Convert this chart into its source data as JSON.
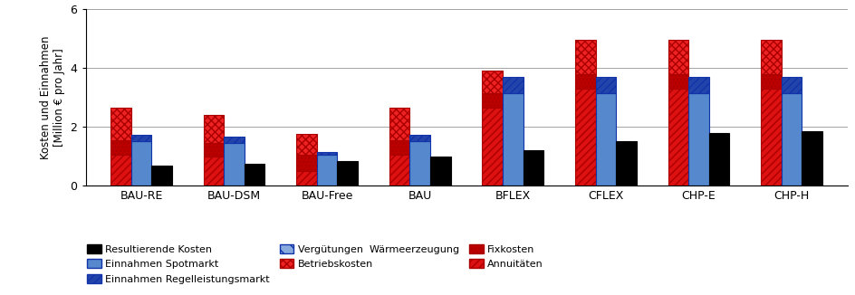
{
  "categories": [
    "BAU-RE",
    "BAU-DSM",
    "BAU-Free",
    "BAU",
    "BFLEX",
    "CFLEX",
    "CHP-E",
    "CHP-H"
  ],
  "ylabel": "Kosten und Einnahmen\n[Million € pro Jahr]",
  "ylim": [
    0,
    6
  ],
  "yticks": [
    0,
    2,
    4,
    6
  ],
  "bar_width": 0.22,
  "red_bar": {
    "Annuitäten": [
      1.05,
      1.0,
      0.5,
      1.05,
      2.65,
      3.3,
      3.3,
      3.3
    ],
    "Fixkosten": [
      0.5,
      0.45,
      0.55,
      0.5,
      0.5,
      0.5,
      0.5,
      0.5
    ],
    "Betriebskosten": [
      1.1,
      0.95,
      0.7,
      1.1,
      0.75,
      1.15,
      1.15,
      1.15
    ]
  },
  "blue_bar": {
    "Vergütungen Wärmeerzeugung": [
      0.0,
      0.0,
      0.0,
      0.0,
      0.0,
      0.0,
      0.0,
      0.0
    ],
    "Einnahmen Spotmarkt": [
      1.5,
      1.45,
      1.05,
      1.5,
      3.15,
      3.15,
      3.15,
      3.15
    ],
    "Einnahmen Regelleistungsmarkt": [
      0.22,
      0.22,
      0.1,
      0.22,
      0.55,
      0.55,
      0.55,
      0.55
    ]
  },
  "black_bar": [
    0.7,
    0.75,
    0.85,
    1.0,
    1.2,
    1.5,
    1.8,
    1.85
  ],
  "red_annuity_color": "#DD1111",
  "red_fix_color": "#BB0000",
  "red_betriebs_color": "#EE2222",
  "red_edge_color": "#AA0000",
  "blue_waerme_color": "#88AADD",
  "blue_spot_color": "#5588CC",
  "blue_regel_color": "#2244AA",
  "blue_edge_color": "#1133AA",
  "black_color": "#000000",
  "legend_labels": [
    "Resultierende Kosten",
    "Einnahmen Spotmarkt",
    "Einnahmen Regelleistungsmarkt",
    "Vergütungen  Wärmeerzeugung",
    "Betriebskosten",
    "Fixkosten",
    "Annuitäten"
  ]
}
